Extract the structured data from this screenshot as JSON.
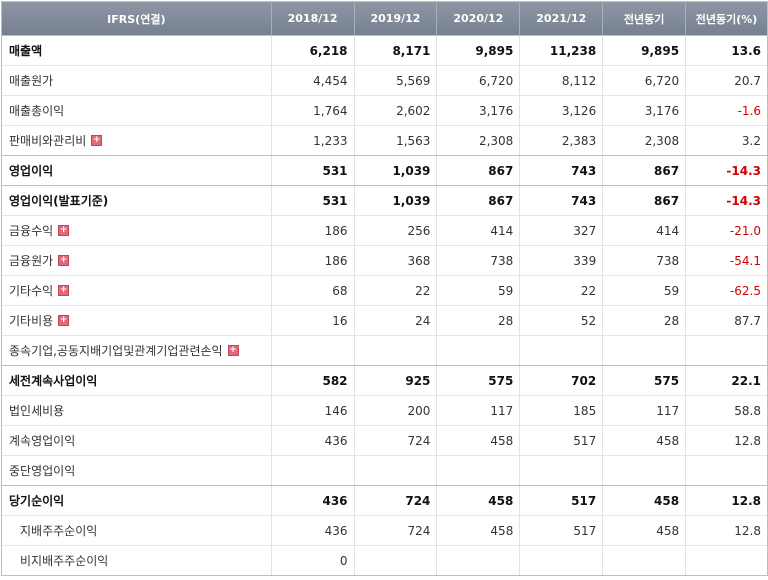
{
  "table": {
    "header": [
      "IFRS(연결)",
      "2018/12",
      "2019/12",
      "2020/12",
      "2021/12",
      "전년동기",
      "전년동기(%)"
    ],
    "rows": [
      {
        "label": "매출액",
        "bold": true,
        "values": [
          "6,218",
          "8,171",
          "9,895",
          "11,238",
          "9,895",
          "13.6"
        ]
      },
      {
        "label": "매출원가",
        "values": [
          "4,454",
          "5,569",
          "6,720",
          "8,112",
          "6,720",
          "20.7"
        ]
      },
      {
        "label": "매출총이익",
        "values": [
          "1,764",
          "2,602",
          "3,176",
          "3,126",
          "3,176",
          "-1.6"
        ]
      },
      {
        "label": "판매비와관리비",
        "expandable": true,
        "values": [
          "1,233",
          "1,563",
          "2,308",
          "2,383",
          "2,308",
          "3.2"
        ]
      },
      {
        "label": "영업이익",
        "bold": true,
        "values": [
          "531",
          "1,039",
          "867",
          "743",
          "867",
          "-14.3"
        ]
      },
      {
        "label": "영업이익(발표기준)",
        "bold": true,
        "values": [
          "531",
          "1,039",
          "867",
          "743",
          "867",
          "-14.3"
        ]
      },
      {
        "label": "금융수익",
        "expandable": true,
        "values": [
          "186",
          "256",
          "414",
          "327",
          "414",
          "-21.0"
        ]
      },
      {
        "label": "금융원가",
        "expandable": true,
        "values": [
          "186",
          "368",
          "738",
          "339",
          "738",
          "-54.1"
        ]
      },
      {
        "label": "기타수익",
        "expandable": true,
        "values": [
          "68",
          "22",
          "59",
          "22",
          "59",
          "-62.5"
        ]
      },
      {
        "label": "기타비용",
        "expandable": true,
        "values": [
          "16",
          "24",
          "28",
          "52",
          "28",
          "87.7"
        ]
      },
      {
        "label": "종속기업,공동지배기업및관계기업관련손익",
        "expandable": true,
        "values": [
          null,
          null,
          null,
          null,
          null,
          null
        ]
      },
      {
        "label": "세전계속사업이익",
        "bold": true,
        "values": [
          "582",
          "925",
          "575",
          "702",
          "575",
          "22.1"
        ]
      },
      {
        "label": "법인세비용",
        "values": [
          "146",
          "200",
          "117",
          "185",
          "117",
          "58.8"
        ]
      },
      {
        "label": "계속영업이익",
        "values": [
          "436",
          "724",
          "458",
          "517",
          "458",
          "12.8"
        ]
      },
      {
        "label": "중단영업이익",
        "values": [
          null,
          null,
          null,
          null,
          null,
          null
        ]
      },
      {
        "label": "당기순이익",
        "bold": true,
        "values": [
          "436",
          "724",
          "458",
          "517",
          "458",
          "12.8"
        ]
      },
      {
        "label": "지배주주순이익",
        "indent": true,
        "values": [
          "436",
          "724",
          "458",
          "517",
          "458",
          "12.8"
        ]
      },
      {
        "label": "비지배주주순이익",
        "indent": true,
        "values": [
          "0",
          null,
          null,
          null,
          null,
          null
        ]
      }
    ]
  }
}
